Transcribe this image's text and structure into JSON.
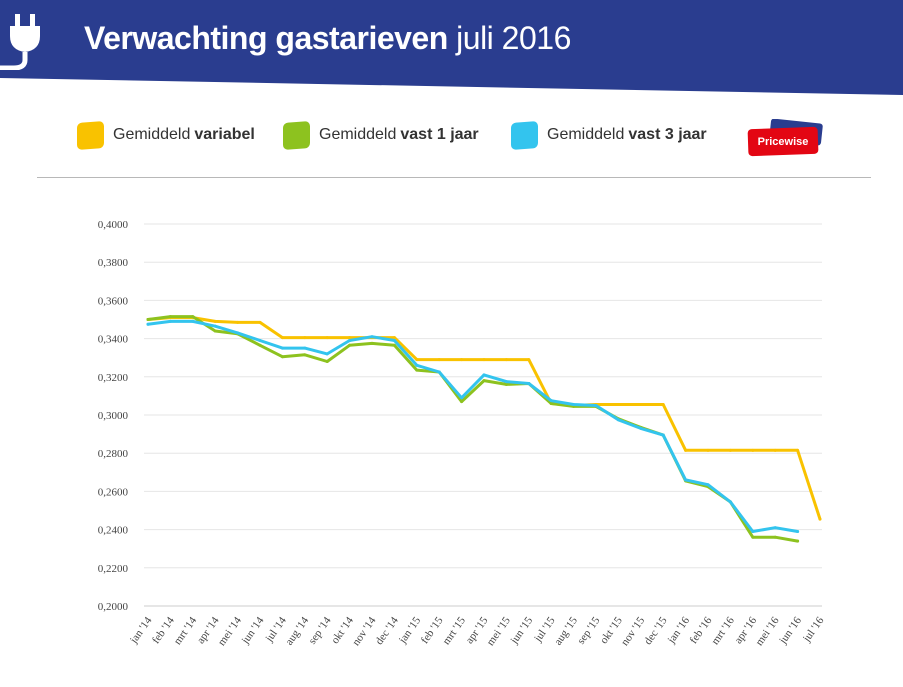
{
  "header": {
    "title_bold": "Verwachting gastarieven",
    "title_light": "juli 2016",
    "background_color": "#2A3D8F",
    "icon": "plug-icon"
  },
  "legend": [
    {
      "prefix": "Gemiddeld",
      "bold": "variabel",
      "color": "#F9C200"
    },
    {
      "prefix": "Gemiddeld",
      "bold": "vast 1 jaar",
      "color": "#8DC21F"
    },
    {
      "prefix": "Gemiddeld",
      "bold": "vast 3 jaar",
      "color": "#33C4EE"
    }
  ],
  "logo": {
    "text": "Pricewise",
    "color": "#E30613",
    "back_color": "#2A3D8F"
  },
  "chart_data": {
    "type": "line",
    "title": "",
    "xlabel": "",
    "ylabel": "",
    "ylim": [
      0.2,
      0.4
    ],
    "yticks": [
      "0,2000",
      "0,2200",
      "0,2400",
      "0,2600",
      "0,2800",
      "0,3000",
      "0,3200",
      "0,3400",
      "0,3600",
      "0,3800",
      "0,4000"
    ],
    "grid": true,
    "categories": [
      "jan '14",
      "feb '14",
      "mrt '14",
      "apr '14",
      "mei '14",
      "jun '14",
      "jul '14",
      "aug '14",
      "sep '14",
      "okt '14",
      "nov '14",
      "dec '14",
      "jan '15",
      "feb '15",
      "mrt '15",
      "apr '15",
      "mei '15",
      "jun '15",
      "jul '15",
      "aug '15",
      "sep '15",
      "okt '15",
      "nov '15",
      "dec '15",
      "jan '16",
      "feb '16",
      "mrt '16",
      "apr '16",
      "mei '16",
      "jun '16",
      "jul '16"
    ],
    "series": [
      {
        "name": "Gemiddeld variabel",
        "color": "#F9C200",
        "values": [
          0.35,
          0.351,
          0.351,
          0.349,
          0.3485,
          0.3485,
          0.3405,
          0.3405,
          0.3405,
          0.3405,
          0.3405,
          0.3405,
          0.329,
          0.329,
          0.329,
          0.329,
          0.329,
          0.329,
          0.306,
          0.305,
          0.3055,
          0.3055,
          0.3055,
          0.3055,
          0.2815,
          0.2815,
          0.2815,
          0.2815,
          0.2815,
          0.2815,
          0.2455
        ]
      },
      {
        "name": "Gemiddeld vast 1 jaar",
        "color": "#8DC21F",
        "values": [
          0.35,
          0.3515,
          0.3515,
          0.344,
          0.3425,
          0.3365,
          0.3305,
          0.3315,
          0.328,
          0.3365,
          0.3375,
          0.3365,
          0.3235,
          0.3225,
          0.307,
          0.318,
          0.316,
          0.3165,
          0.306,
          0.3045,
          0.3045,
          0.298,
          0.2935,
          0.2895,
          0.2655,
          0.2625,
          0.2545,
          0.236,
          0.236,
          0.234,
          null
        ]
      },
      {
        "name": "Gemiddeld vast 3 jaar",
        "color": "#33C4EE",
        "values": [
          0.3475,
          0.349,
          0.349,
          0.3465,
          0.343,
          0.339,
          0.335,
          0.335,
          0.332,
          0.339,
          0.341,
          0.339,
          0.326,
          0.3225,
          0.309,
          0.321,
          0.3175,
          0.3165,
          0.3075,
          0.3055,
          0.305,
          0.2975,
          0.293,
          0.2895,
          0.266,
          0.2635,
          0.2545,
          0.239,
          0.241,
          0.239,
          null
        ]
      }
    ]
  }
}
